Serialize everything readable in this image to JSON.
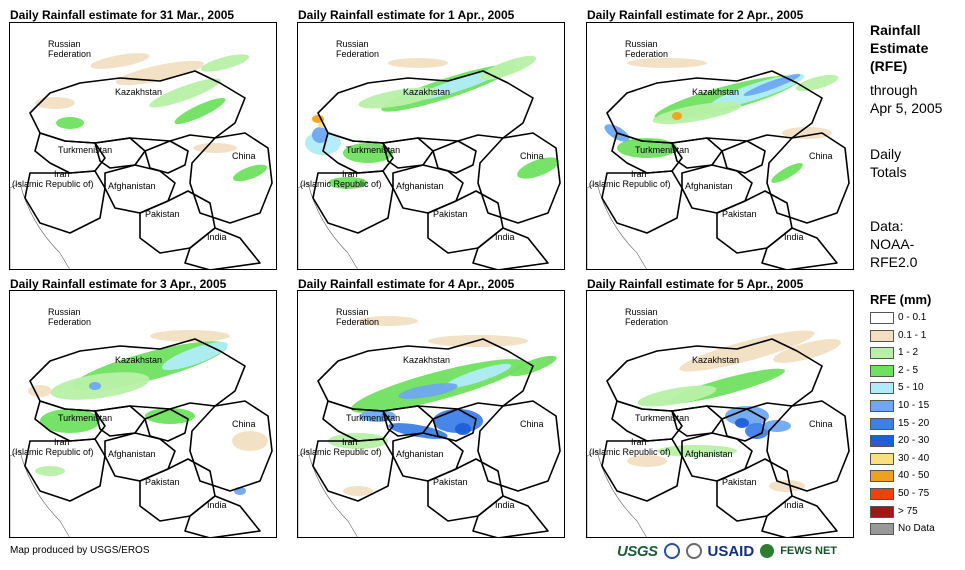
{
  "panels": [
    {
      "title": "Daily Rainfall estimate for 31 Mar., 2005"
    },
    {
      "title": "Daily Rainfall estimate for 1 Apr., 2005"
    },
    {
      "title": "Daily Rainfall estimate for 2 Apr., 2005"
    },
    {
      "title": "Daily Rainfall estimate for 3 Apr., 2005"
    },
    {
      "title": "Daily Rainfall estimate for 4 Apr., 2005"
    },
    {
      "title": "Daily Rainfall estimate for 5 Apr., 2005"
    }
  ],
  "map_labels": {
    "russia_1": "Russian",
    "russia_2": "Federation",
    "kazakhstan": "Kazakhstan",
    "turkmenistan": "Turkmenistan",
    "china": "China",
    "iran_1": "Iran",
    "iran_2": "(Islamic Republic of)",
    "afghanistan": "Afghanistan",
    "pakistan": "Pakistan",
    "india": "India"
  },
  "side": {
    "rfe_1": "Rainfall",
    "rfe_2": "Estimate",
    "rfe_3": "(RFE)",
    "through_1": "through",
    "through_2": "Apr 5, 2005",
    "daily_1": "Daily",
    "daily_2": "Totals",
    "data_1": "Data:",
    "data_2": "NOAA-",
    "data_3": "RFE2.0"
  },
  "legend": {
    "title": "RFE (mm)",
    "items": [
      {
        "label": "0 - 0.1",
        "color": "#ffffff"
      },
      {
        "label": "0.1 - 1",
        "color": "#f2dfc2"
      },
      {
        "label": "1 - 2",
        "color": "#b8f0a8"
      },
      {
        "label": "2 - 5",
        "color": "#6fe060"
      },
      {
        "label": "5 - 10",
        "color": "#b0ecf8"
      },
      {
        "label": "10 - 15",
        "color": "#6fa8f0"
      },
      {
        "label": "15 - 20",
        "color": "#3f7fe8"
      },
      {
        "label": "20 - 30",
        "color": "#1f5fd8"
      },
      {
        "label": "30 - 40",
        "color": "#f8e080"
      },
      {
        "label": "40 - 50",
        "color": "#f0a020"
      },
      {
        "label": "50 - 75",
        "color": "#f04010"
      },
      {
        "label": "> 75",
        "color": "#a01818"
      },
      {
        "label": "No Data",
        "color": "#999999"
      }
    ]
  },
  "credit": "Map produced by USGS/EROS",
  "logos": {
    "usgs": "USGS",
    "usaid": "USAID",
    "fews": "FEWS NET"
  }
}
